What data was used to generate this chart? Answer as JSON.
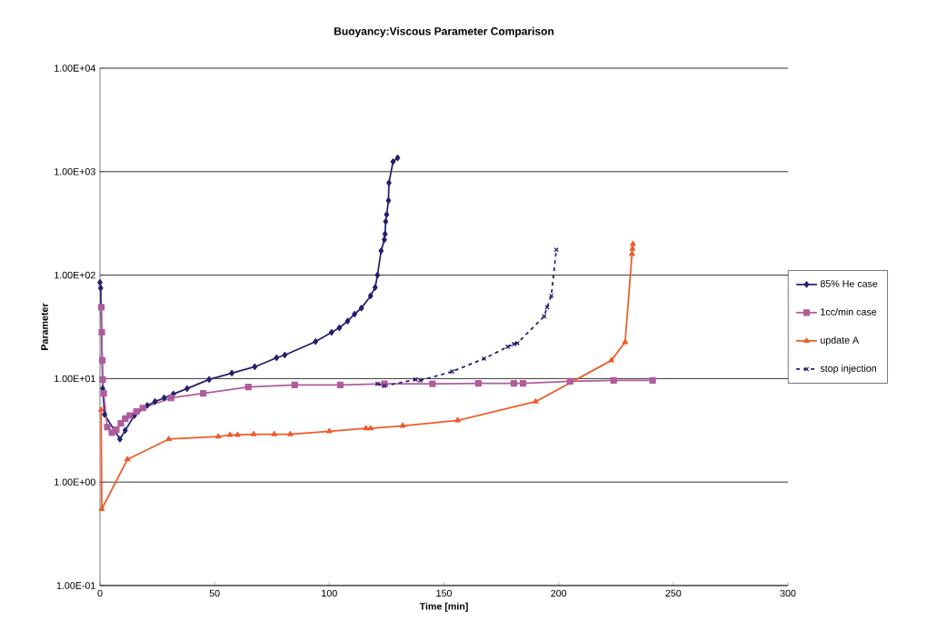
{
  "chart_data": {
    "type": "line",
    "title": "Buoyancy:Viscous Parameter Comparison",
    "xlabel": "Time [min]",
    "ylabel": "Parameter",
    "xlim": [
      0,
      300
    ],
    "xticks": [
      0,
      50,
      100,
      150,
      200,
      250,
      300
    ],
    "ylim": [
      0.1,
      10000
    ],
    "yticks": [
      {
        "value": 0.1,
        "label": "1.00E-01"
      },
      {
        "value": 1,
        "label": "1.00E+00"
      },
      {
        "value": 10,
        "label": "1.00E+01"
      },
      {
        "value": 100,
        "label": "1.00E+02"
      },
      {
        "value": 1000,
        "label": "1.00E+03"
      },
      {
        "value": 10000,
        "label": "1.00E+04"
      }
    ],
    "log": "y",
    "grid": "y",
    "legend": "right",
    "series": [
      {
        "name": "85% He case",
        "color": "#22206e",
        "marker": "diamond",
        "line_style": "solid",
        "x": [
          0,
          0.3,
          1.2,
          2,
          8.7,
          11,
          15,
          20.6,
          24,
          28,
          32,
          38,
          47.6,
          57.5,
          67.5,
          77,
          80.6,
          94,
          101,
          104.4,
          108,
          111,
          114,
          118,
          120,
          121,
          122.6,
          124,
          124.3,
          124.6,
          125,
          125.8,
          126,
          127.8,
          129.8
        ],
        "values": [
          85,
          75,
          8,
          4.5,
          2.6,
          3.16,
          4.4,
          5.5,
          6.0,
          6.5,
          7.1,
          8.0,
          9.8,
          11.3,
          13.0,
          15.9,
          16.9,
          22.8,
          28,
          31,
          36,
          42,
          48,
          63,
          76,
          100,
          172,
          220,
          250,
          330,
          385,
          525,
          780,
          1250,
          1360
        ]
      },
      {
        "name": "1cc/min case",
        "color": "#b05c9c",
        "marker": "square",
        "line_style": "solid",
        "x": [
          0.6,
          0.8,
          1,
          1.2,
          1.6,
          3.2,
          5.2,
          7.1,
          9.1,
          11,
          13,
          15.9,
          18.7,
          31,
          45,
          64.7,
          84.9,
          104.8,
          124,
          145,
          165,
          180.5,
          184.5,
          205,
          224,
          241
        ],
        "values": [
          49,
          28,
          15,
          9.8,
          7.2,
          3.4,
          3.0,
          3.2,
          3.7,
          4.1,
          4.4,
          4.8,
          5.2,
          6.5,
          7.2,
          8.3,
          8.7,
          8.7,
          8.9,
          8.9,
          9.0,
          9.0,
          9.0,
          9.4,
          9.6,
          9.6
        ]
      },
      {
        "name": "update A",
        "color": "#f05a28",
        "marker": "triangle",
        "line_style": "solid",
        "x": [
          0.5,
          0.8,
          12,
          30,
          51.6,
          56.7,
          60,
          67,
          76,
          83,
          100,
          116,
          118,
          132,
          156,
          190,
          223,
          229,
          232,
          232.2,
          232.4
        ],
        "values": [
          5.0,
          0.55,
          1.66,
          2.6,
          2.75,
          2.85,
          2.85,
          2.9,
          2.9,
          2.9,
          3.1,
          3.3,
          3.3,
          3.5,
          3.95,
          6.0,
          15,
          22.5,
          160,
          180,
          200
        ]
      },
      {
        "name": "stop injection",
        "color": "#22206e",
        "marker": "cross",
        "line_style": "dashed",
        "x": [
          121,
          124,
          137.7,
          139.7,
          153.6,
          167.5,
          177.8,
          180.5,
          182,
          193.7,
          195,
          196.8,
          199
        ],
        "values": [
          8.9,
          8.5,
          9.8,
          9.6,
          11.7,
          15.6,
          20.3,
          21.6,
          22,
          40,
          49,
          63,
          176
        ]
      }
    ]
  }
}
